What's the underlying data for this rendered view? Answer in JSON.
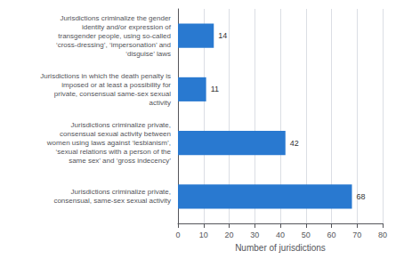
{
  "chart_data": {
    "type": "bar",
    "orientation": "horizontal",
    "categories": [
      "Jurisdictions criminalize private,\nconsensual, same-sex sexual activity",
      "Jurisdictions criminalize private,\nconsensual sexual activity between\nwomen using laws against ‘lesbianism’,\n‘sexual relations with a person of the\nsame sex’ and ‘gross indecency’",
      "Jurisdictions in which the death penalty is\nimposed or at least a possibility for\nprivate, consensual same-sex sexual\nactivity",
      "Jurisdictions criminalize the gender\nidentity and/or expression of\ntransgender people, using so-called\n‘cross-dressing’, ‘impersonation’ and\n‘disguise’ laws"
    ],
    "values": [
      68,
      42,
      11,
      14
    ],
    "color": "#2979d0",
    "xlabel": "Number of jurisdictions",
    "xlim": [
      0,
      80
    ],
    "xticks": [
      0,
      10,
      20,
      30,
      40,
      50,
      60,
      70,
      80
    ],
    "grid": true,
    "data_labels": true
  }
}
